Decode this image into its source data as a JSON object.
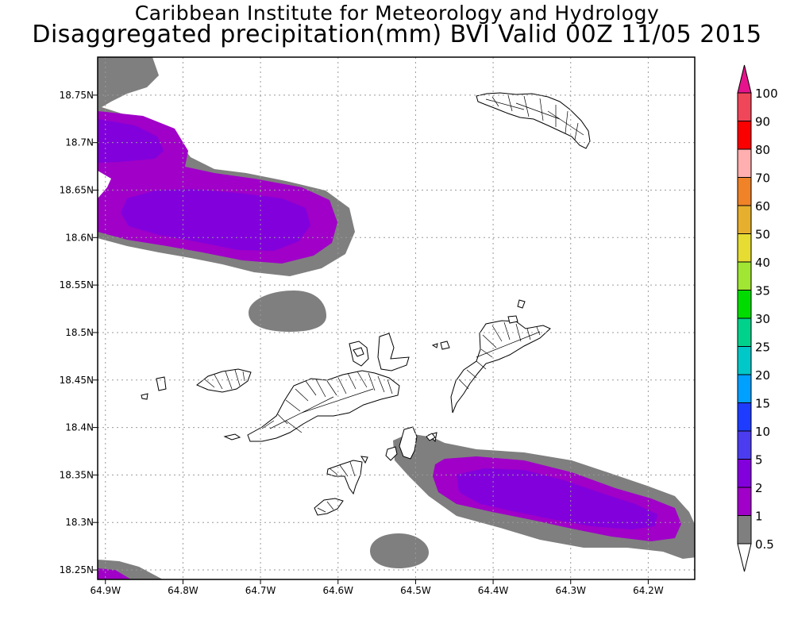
{
  "header": {
    "institute": "Caribbean Institute for Meteorology and Hydrology",
    "title": "Disaggregated precipitation(mm) BVI Valid 00Z 11/05 2015"
  },
  "map": {
    "lon_range": [
      -64.91,
      -64.14
    ],
    "lat_range": [
      18.24,
      18.79
    ],
    "x_ticks": [
      {
        "value": -64.9,
        "label": "64.9W"
      },
      {
        "value": -64.8,
        "label": "64.8W"
      },
      {
        "value": -64.7,
        "label": "64.7W"
      },
      {
        "value": -64.6,
        "label": "64.6W"
      },
      {
        "value": -64.5,
        "label": "64.5W"
      },
      {
        "value": -64.4,
        "label": "64.4W"
      },
      {
        "value": -64.3,
        "label": "64.3W"
      },
      {
        "value": -64.2,
        "label": "64.2W"
      }
    ],
    "y_ticks": [
      {
        "value": 18.25,
        "label": "18.25N"
      },
      {
        "value": 18.3,
        "label": "18.3N"
      },
      {
        "value": 18.35,
        "label": "18.35N"
      },
      {
        "value": 18.4,
        "label": "18.4N"
      },
      {
        "value": 18.45,
        "label": "18.45N"
      },
      {
        "value": 18.5,
        "label": "18.5N"
      },
      {
        "value": 18.55,
        "label": "18.55N"
      },
      {
        "value": 18.6,
        "label": "18.6N"
      },
      {
        "value": 18.65,
        "label": "18.65N"
      },
      {
        "value": 18.7,
        "label": "18.7N"
      },
      {
        "value": 18.75,
        "label": "18.75N"
      }
    ],
    "grid": true,
    "units": "mm"
  },
  "legend": {
    "levels": [
      {
        "label": "0.5",
        "color": "#ffffff"
      },
      {
        "label": "1",
        "color": "#7f7f7f"
      },
      {
        "label": "2",
        "color": "#a000c8"
      },
      {
        "label": "5",
        "color": "#8200dc"
      },
      {
        "label": "10",
        "color": "#4b3cf0"
      },
      {
        "label": "15",
        "color": "#1e3cff"
      },
      {
        "label": "20",
        "color": "#00a0ff"
      },
      {
        "label": "25",
        "color": "#00c8c8"
      },
      {
        "label": "30",
        "color": "#00d28c"
      },
      {
        "label": "35",
        "color": "#00dc00"
      },
      {
        "label": "40",
        "color": "#a0e632"
      },
      {
        "label": "50",
        "color": "#e6dc32"
      },
      {
        "label": "60",
        "color": "#e6af2d"
      },
      {
        "label": "70",
        "color": "#f08228"
      },
      {
        "label": "80",
        "color": "#ffafaf"
      },
      {
        "label": "90",
        "color": "#fa0000"
      },
      {
        "label": "100",
        "color": "#f0465a"
      }
    ],
    "top_arrow_color": "#e6148c",
    "bottom_arrow_color": "#ffffff"
  }
}
